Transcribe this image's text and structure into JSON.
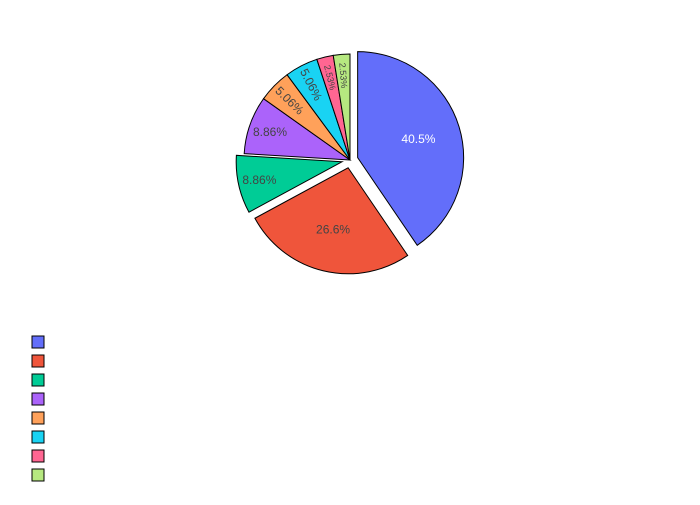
{
  "chart_data": {
    "type": "pie",
    "title": "",
    "values": [
      40.5,
      26.6,
      8.86,
      8.86,
      5.06,
      5.06,
      2.53,
      2.53
    ],
    "labels": [
      "40.5%",
      "26.6%",
      "8.86%",
      "8.86%",
      "5.06%",
      "5.06%",
      "2.53%",
      "2.53%"
    ],
    "legend_entries": [
      "",
      "",
      "",
      "",
      "",
      "",
      "",
      ""
    ],
    "legend_placement": "bottom-left",
    "colors": [
      "#636efa",
      "#ef553b",
      "#00cc96",
      "#ab63fa",
      "#ffa15a",
      "#19d3f3",
      "#ff6692",
      "#b6e880"
    ],
    "label_text_colors": [
      "#ffffff",
      "#444444",
      "#444444",
      "#444444",
      "#444444",
      "#444444",
      "#444444",
      "#444444"
    ],
    "slice_outline_color": "#000000",
    "exploded_slices": [
      0,
      1,
      2
    ]
  }
}
